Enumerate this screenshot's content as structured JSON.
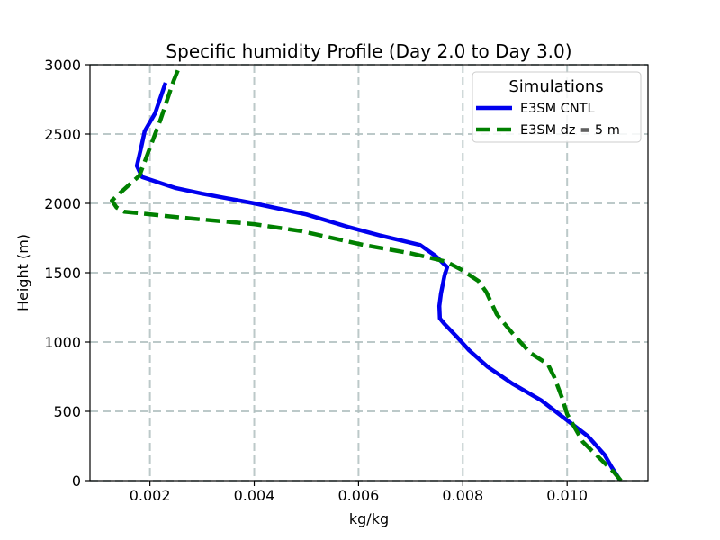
{
  "chart_data": {
    "type": "line",
    "title": "Specific humidity Profile (Day 2.0 to Day 3.0)",
    "xlabel": "kg/kg",
    "ylabel": "Height (m)",
    "xlim": [
      0.00085,
      0.01155
    ],
    "ylim": [
      0,
      3000
    ],
    "xticks": [
      0.002,
      0.004,
      0.006,
      0.008,
      0.01
    ],
    "xtick_labels": [
      "0.002",
      "0.004",
      "0.006",
      "0.008",
      "0.010"
    ],
    "yticks": [
      0,
      500,
      1000,
      1500,
      2000,
      2500,
      3000
    ],
    "ytick_labels": [
      "0",
      "500",
      "1000",
      "1500",
      "2000",
      "2500",
      "3000"
    ],
    "grid": true,
    "legend": {
      "title": "Simulations",
      "position": "top-right"
    },
    "series": [
      {
        "name": "E3SM CNTL",
        "color": "#0000ee",
        "style": "solid",
        "points": [
          [
            0.01102,
            0
          ],
          [
            0.01085,
            100
          ],
          [
            0.01072,
            185
          ],
          [
            0.0104,
            320
          ],
          [
            0.00995,
            450
          ],
          [
            0.0095,
            580
          ],
          [
            0.00895,
            700
          ],
          [
            0.00848,
            820
          ],
          [
            0.00812,
            940
          ],
          [
            0.00788,
            1040
          ],
          [
            0.00765,
            1130
          ],
          [
            0.00756,
            1170
          ],
          [
            0.00755,
            1260
          ],
          [
            0.00758,
            1350
          ],
          [
            0.00765,
            1480
          ],
          [
            0.0077,
            1540
          ],
          [
            0.00748,
            1620
          ],
          [
            0.00718,
            1700
          ],
          [
            0.0064,
            1770
          ],
          [
            0.0058,
            1830
          ],
          [
            0.005,
            1920
          ],
          [
            0.004,
            2000
          ],
          [
            0.003,
            2070
          ],
          [
            0.0025,
            2110
          ],
          [
            0.00185,
            2190
          ],
          [
            0.00175,
            2270
          ],
          [
            0.00183,
            2400
          ],
          [
            0.0019,
            2520
          ],
          [
            0.0021,
            2650
          ],
          [
            0.0023,
            2870
          ]
        ]
      },
      {
        "name": "E3SM dz = 5 m",
        "color": "#008000",
        "style": "dashed",
        "points": [
          [
            0.01103,
            0
          ],
          [
            0.0109,
            60
          ],
          [
            0.0106,
            170
          ],
          [
            0.0103,
            280
          ],
          [
            0.01,
            480
          ],
          [
            0.0099,
            600
          ],
          [
            0.00975,
            750
          ],
          [
            0.00963,
            840
          ],
          [
            0.0093,
            920
          ],
          [
            0.00898,
            1050
          ],
          [
            0.00865,
            1200
          ],
          [
            0.00845,
            1360
          ],
          [
            0.0083,
            1440
          ],
          [
            0.00798,
            1520
          ],
          [
            0.00768,
            1580
          ],
          [
            0.007,
            1640
          ],
          [
            0.0061,
            1700
          ],
          [
            0.0049,
            1800
          ],
          [
            0.004,
            1850
          ],
          [
            0.0028,
            1890
          ],
          [
            0.0015,
            1940
          ],
          [
            0.00136,
            1970
          ],
          [
            0.00127,
            2020
          ],
          [
            0.0015,
            2100
          ],
          [
            0.0018,
            2200
          ],
          [
            0.002,
            2400
          ],
          [
            0.0022,
            2600
          ],
          [
            0.00245,
            2880
          ],
          [
            0.00258,
            3000
          ]
        ]
      }
    ]
  }
}
